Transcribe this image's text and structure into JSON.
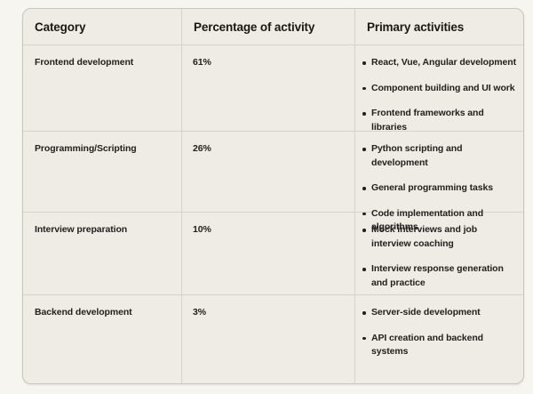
{
  "table": {
    "headers": [
      "Category",
      "Percentage of activity",
      "Primary activities"
    ],
    "rows": [
      {
        "category": "Frontend development",
        "percentage": "61%",
        "activities": [
          "React, Vue, Angular development",
          "Component building and UI work",
          "Frontend frameworks and libraries"
        ]
      },
      {
        "category": "Programming/Scripting",
        "percentage": "26%",
        "activities": [
          "Python scripting and development",
          "General programming tasks",
          "Code implementation and algorithms"
        ]
      },
      {
        "category": "Interview preparation",
        "percentage": "10%",
        "activities": [
          "Mock interviews and job interview coaching",
          "Interview response generation and practice"
        ]
      },
      {
        "category": "Backend development",
        "percentage": "3%",
        "activities": [
          "Server-side development",
          "API creation and backend systems"
        ]
      }
    ]
  },
  "chart_data": {
    "type": "table",
    "columns": [
      "Category",
      "Percentage of activity",
      "Primary activities"
    ],
    "categories": [
      "Frontend development",
      "Programming/Scripting",
      "Interview preparation",
      "Backend development"
    ],
    "values": [
      61,
      26,
      10,
      3
    ],
    "unit": "%",
    "title": ""
  },
  "colors": {
    "page_background": "#f7f5f0",
    "table_background": "#eeece4",
    "border": "#d6d3ca",
    "outer_border": "#c9c6bd",
    "text": "#22211e"
  }
}
